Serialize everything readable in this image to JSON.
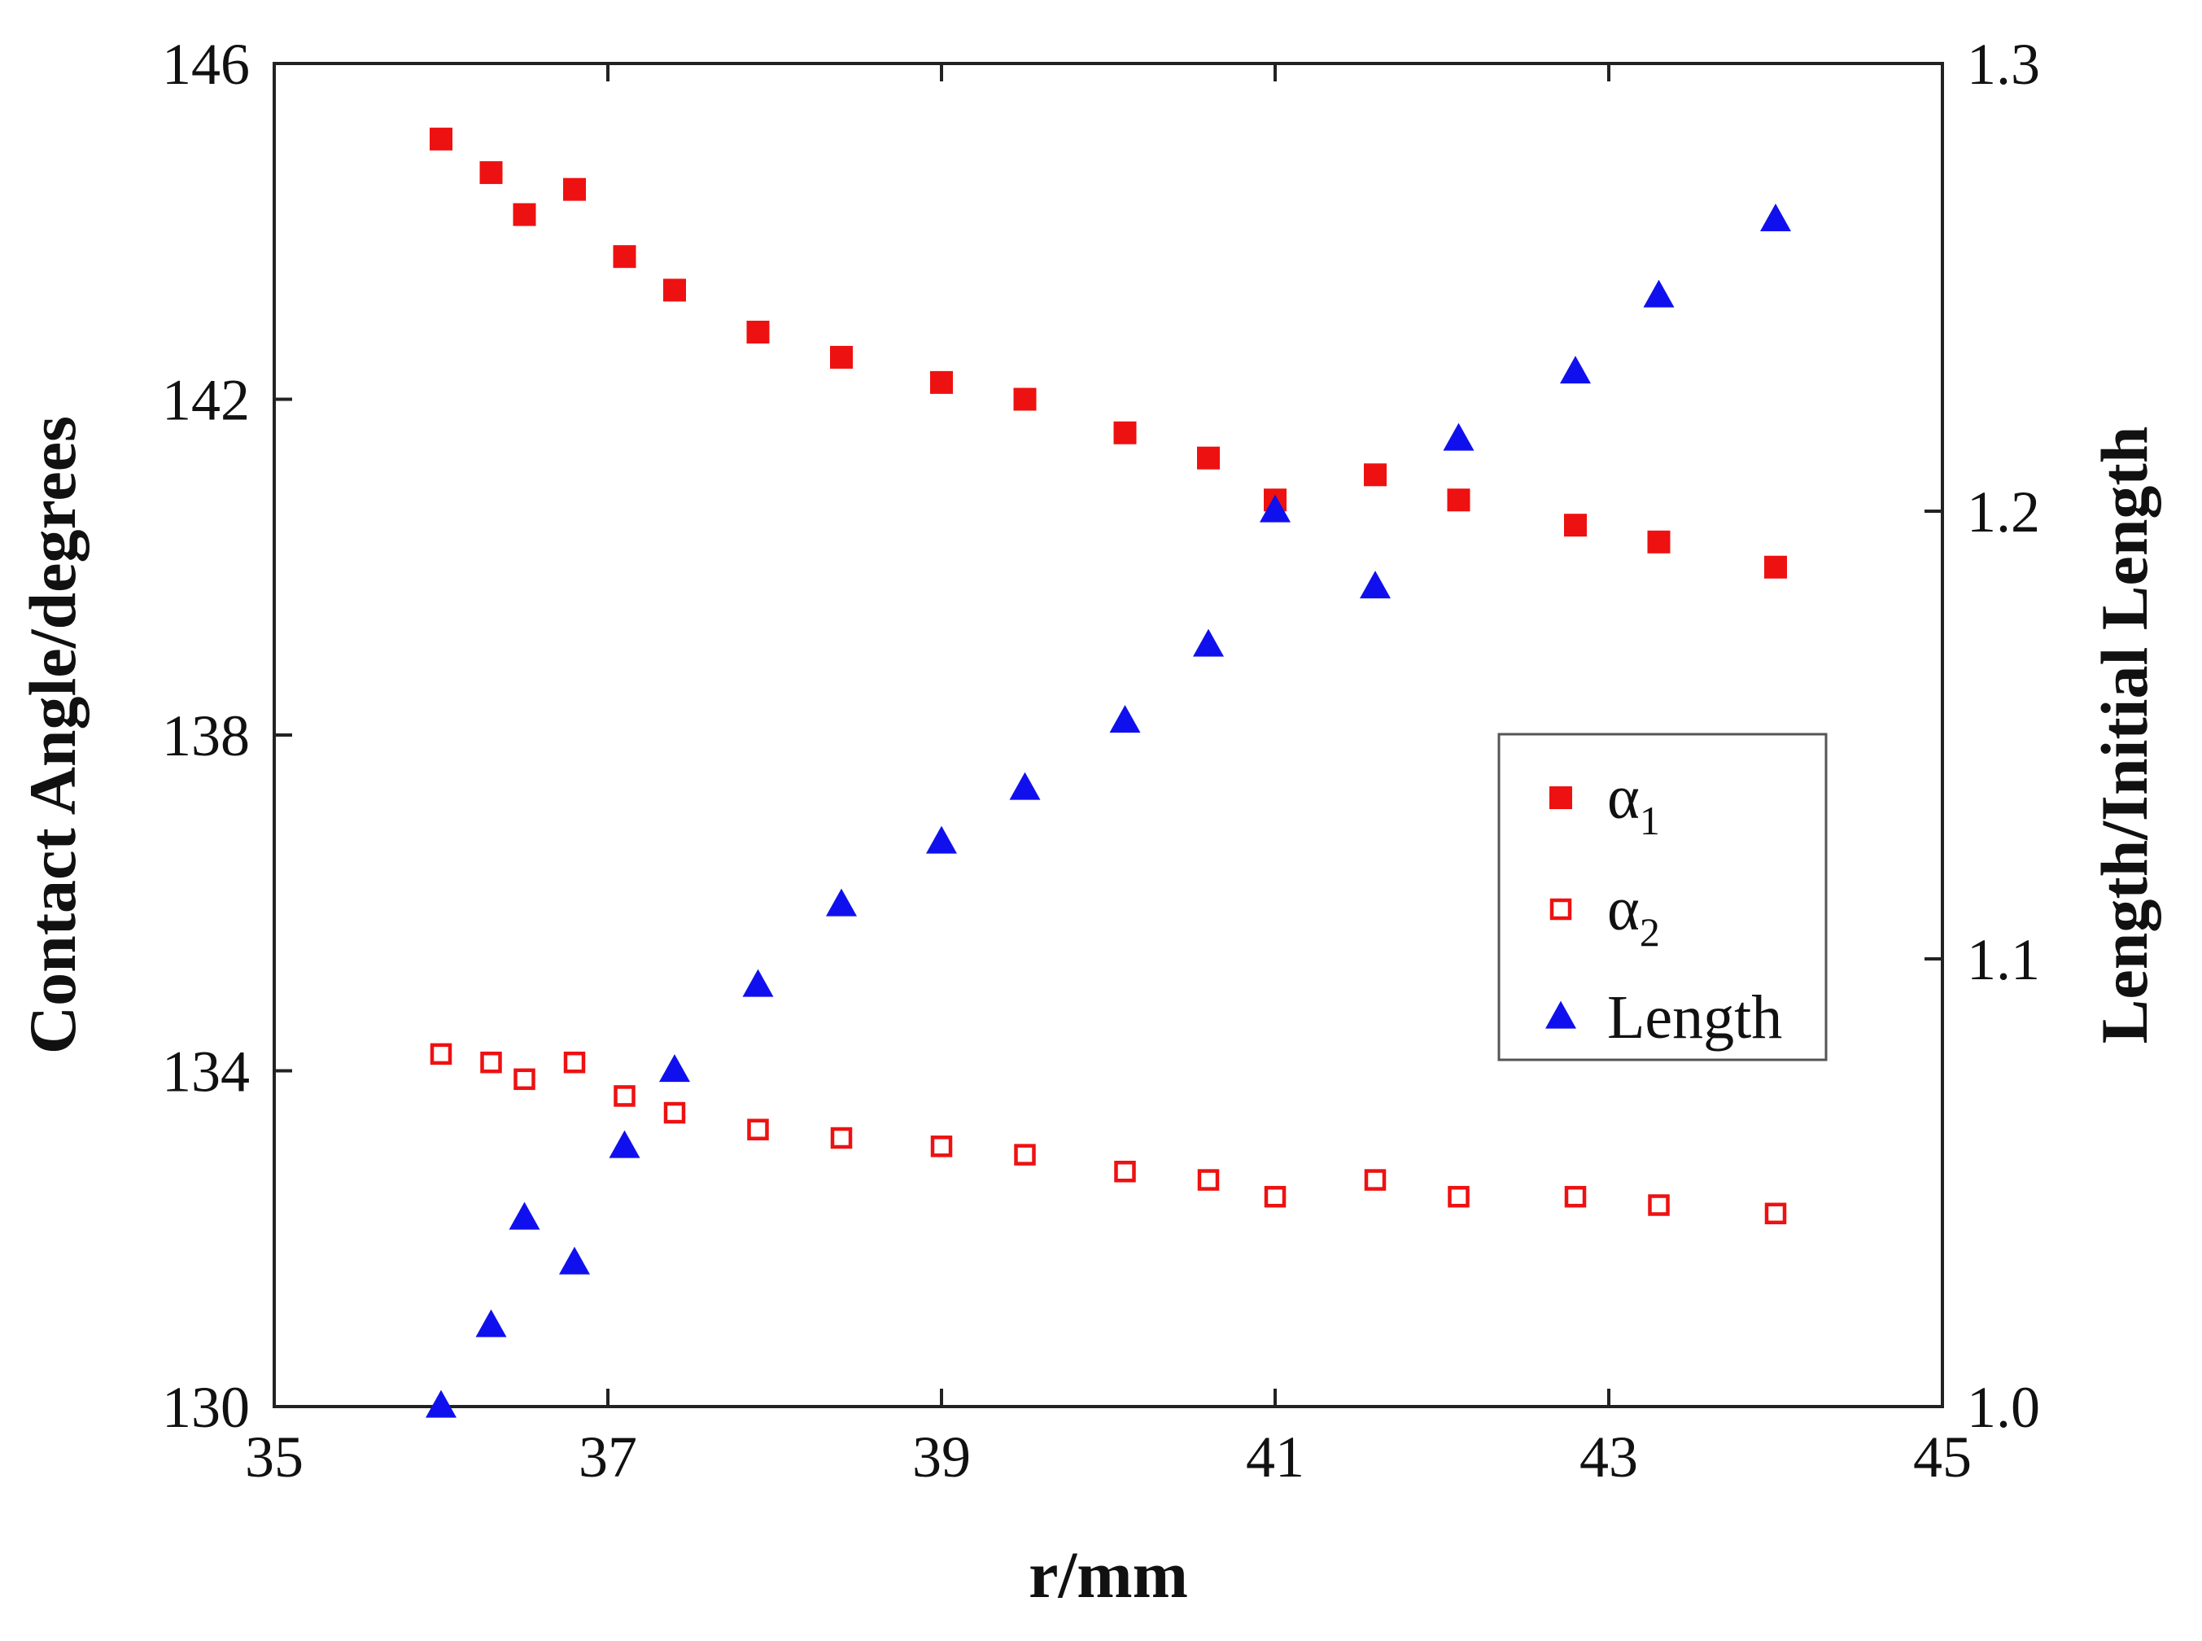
{
  "chart_data": {
    "type": "scatter",
    "title": "",
    "xlabel": "r/mm",
    "ylabel": "Contact Angle/degrees",
    "y2label": "Length/Initial Length",
    "xlim": [
      35,
      45
    ],
    "ylim": [
      130,
      146
    ],
    "y2lim": [
      1.0,
      1.3
    ],
    "xticks": [
      "35",
      "37",
      "39",
      "41",
      "43",
      "45"
    ],
    "yticks": [
      "130",
      "134",
      "138",
      "142",
      "146"
    ],
    "y2ticks": [
      "1.0",
      "1.1",
      "1.2",
      "1.3"
    ],
    "grid": false,
    "legend_position": "center-right",
    "x": [
      36.0,
      36.3,
      36.5,
      36.8,
      37.1,
      37.4,
      37.9,
      38.4,
      39.0,
      39.5,
      40.1,
      40.6,
      41.0,
      41.6,
      42.1,
      42.8,
      43.3,
      44.0
    ],
    "series": [
      {
        "name": "α1",
        "legend_main": "α",
        "legend_sub": "1",
        "axis": "left",
        "marker": "filled-square",
        "color": "#ee1111",
        "values": [
          145.1,
          144.7,
          144.2,
          144.5,
          143.7,
          143.3,
          142.8,
          142.5,
          142.2,
          142.0,
          141.6,
          141.3,
          140.8,
          141.1,
          140.8,
          140.5,
          140.3,
          140.0
        ]
      },
      {
        "name": "α2",
        "legend_main": "α",
        "legend_sub": "2",
        "axis": "left",
        "marker": "open-square",
        "color": "#ee1111",
        "values": [
          134.2,
          134.1,
          133.9,
          134.1,
          133.7,
          133.5,
          133.3,
          133.2,
          133.1,
          133.0,
          132.8,
          132.7,
          132.5,
          132.7,
          132.5,
          132.5,
          132.4,
          132.3
        ]
      },
      {
        "name": "Length",
        "legend_main": "Length",
        "legend_sub": "",
        "axis": "right",
        "marker": "filled-triangle",
        "color": "#1010ee",
        "values": [
          1.0,
          1.018,
          1.042,
          1.032,
          1.058,
          1.075,
          1.094,
          1.112,
          1.126,
          1.138,
          1.153,
          1.17,
          1.2,
          1.183,
          1.216,
          1.231,
          1.248,
          1.265
        ]
      }
    ]
  }
}
